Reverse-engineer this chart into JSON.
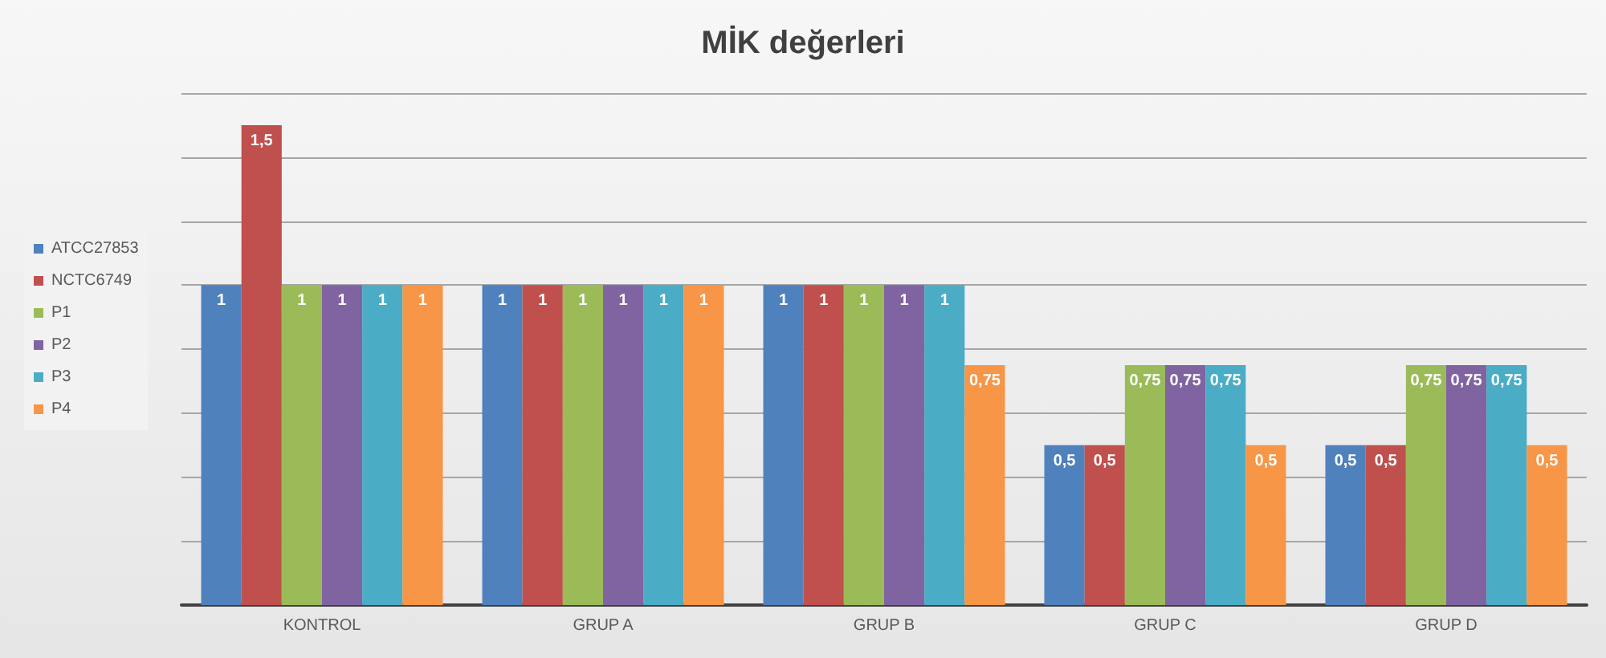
{
  "chart_data": {
    "type": "bar",
    "title": "MİK değerleri",
    "categories": [
      "KONTROL",
      "GRUP A",
      "GRUP B",
      "GRUP C",
      "GRUP D"
    ],
    "series": [
      {
        "name": "ATCC27853",
        "color": "#4f81bd",
        "values": [
          1,
          1,
          1,
          0.5,
          0.5
        ],
        "value_labels": [
          "1",
          "1",
          "1",
          "0,5",
          "0,5"
        ]
      },
      {
        "name": "NCTC6749",
        "color": "#c0504d",
        "values": [
          1.5,
          1,
          1,
          0.5,
          0.5
        ],
        "value_labels": [
          "1,5",
          "1",
          "1",
          "0,5",
          "0,5"
        ]
      },
      {
        "name": "P1",
        "color": "#9bbb59",
        "values": [
          1,
          1,
          1,
          0.75,
          0.75
        ],
        "value_labels": [
          "1",
          "1",
          "1",
          "0,75",
          "0,75"
        ]
      },
      {
        "name": "P2",
        "color": "#8064a2",
        "values": [
          1,
          1,
          1,
          0.75,
          0.75
        ],
        "value_labels": [
          "1",
          "1",
          "1",
          "0,75",
          "0,75"
        ]
      },
      {
        "name": "P3",
        "color": "#4bacc6",
        "values": [
          1,
          1,
          1,
          0.75,
          0.75
        ],
        "value_labels": [
          "1",
          "1",
          "1",
          "0,75",
          "0,75"
        ]
      },
      {
        "name": "P4",
        "color": "#f79646",
        "values": [
          1,
          1,
          0.75,
          0.5,
          0.5
        ],
        "value_labels": [
          "1",
          "1",
          "0,75",
          "0,5",
          "0,5"
        ]
      }
    ],
    "ylim": [
      0,
      1.6
    ],
    "yticks": [
      {
        "value": 0,
        "label": null
      },
      {
        "value": 0.2,
        "label": null
      },
      {
        "value": 0.4,
        "label": null
      },
      {
        "value": 0.6,
        "label": null
      },
      {
        "value": 0.8,
        "label": null
      },
      {
        "value": 1,
        "label": null
      },
      {
        "value": 1.2,
        "label": null
      },
      {
        "value": 1.4,
        "label": null
      },
      {
        "value": 1.6,
        "label": null
      }
    ],
    "grid": "y",
    "legend": "left",
    "tick_labels": "x"
  }
}
